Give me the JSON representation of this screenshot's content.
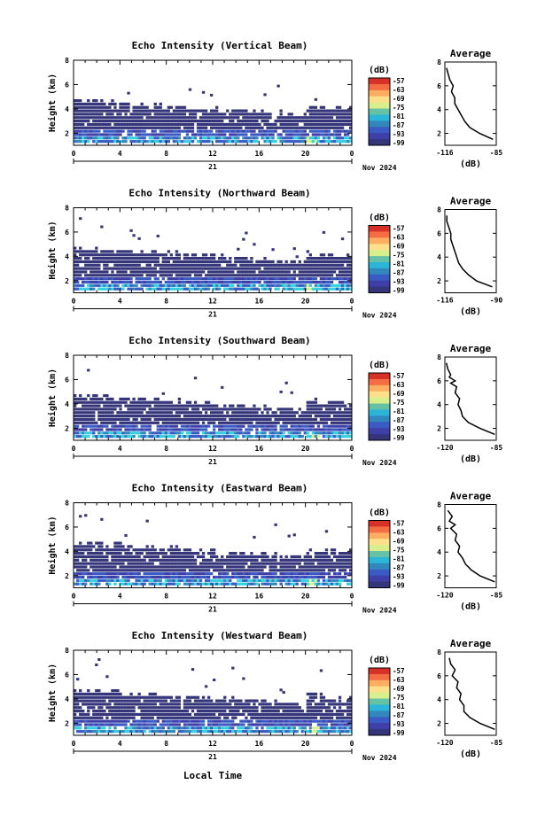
{
  "colorbar": {
    "unit": "(dB)",
    "labels": [
      "-57",
      "-63",
      "-69",
      "-75",
      "-81",
      "-87",
      "-93",
      "-99"
    ],
    "colors": [
      "#d73027",
      "#f46d43",
      "#fdae61",
      "#fee08b",
      "#d9ef8b",
      "#66c2a5",
      "#2bb5d8",
      "#3288bd",
      "#3b5bc4",
      "#3f3fa8",
      "#35357a"
    ]
  },
  "xaxis": {
    "ticks": [
      "0",
      "4",
      "8",
      "12",
      "16",
      "20",
      "0"
    ],
    "day": "21",
    "date": "Nov 2024",
    "label": "Local Time"
  },
  "chart_data": [
    {
      "type": "heatmap",
      "title": "Echo Intensity (Vertical Beam)",
      "ylabel": "Height (km)",
      "yticks": [
        "2",
        "4",
        "6",
        "8"
      ],
      "ylim": [
        1,
        8
      ],
      "xlim": [
        0,
        24
      ],
      "profile": {
        "title": "Average",
        "xlabel": "(dB)",
        "xticks": [
          "-116",
          "-85"
        ],
        "xlim": [
          -116,
          -85
        ],
        "height": [
          1.5,
          2.0,
          2.5,
          3.0,
          3.5,
          4.0,
          4.5,
          5.0,
          5.5,
          6.0,
          6.5,
          7.0,
          7.5
        ],
        "value": [
          -87,
          -95,
          -101,
          -104,
          -106,
          -108,
          -110,
          -110,
          -112,
          -111,
          -113,
          -114,
          -115
        ]
      }
    },
    {
      "type": "heatmap",
      "title": "Echo Intensity (Northward Beam)",
      "ylabel": "Height (km)",
      "yticks": [
        "2",
        "4",
        "6",
        "8"
      ],
      "ylim": [
        1,
        8
      ],
      "xlim": [
        0,
        24
      ],
      "profile": {
        "title": "Average",
        "xlabel": "(dB)",
        "xticks": [
          "-116",
          "-90"
        ],
        "xlim": [
          -116,
          -90
        ],
        "height": [
          1.5,
          2.0,
          2.5,
          3.0,
          3.5,
          4.0,
          4.5,
          5.0,
          5.5,
          6.0,
          6.5,
          7.0,
          7.5
        ],
        "value": [
          -92,
          -100,
          -104,
          -107,
          -109,
          -110,
          -111,
          -112,
          -113,
          -113,
          -114,
          -115,
          -115
        ]
      }
    },
    {
      "type": "heatmap",
      "title": "Echo Intensity (Southward Beam)",
      "ylabel": "Height (km)",
      "yticks": [
        "2",
        "4",
        "6",
        "8"
      ],
      "ylim": [
        1,
        8
      ],
      "xlim": [
        0,
        24
      ],
      "profile": {
        "title": "Average",
        "xlabel": "(dB)",
        "xticks": [
          "-120",
          "-85"
        ],
        "xlim": [
          -120,
          -85
        ],
        "height": [
          1.5,
          2.0,
          2.5,
          3.0,
          3.5,
          4.0,
          4.5,
          5.0,
          5.5,
          5.8,
          6.0,
          6.3,
          6.5,
          7.0,
          7.5
        ],
        "value": [
          -86,
          -96,
          -104,
          -108,
          -109,
          -111,
          -110,
          -113,
          -112,
          -116,
          -113,
          -117,
          -116,
          -118,
          -119
        ]
      }
    },
    {
      "type": "heatmap",
      "title": "Echo Intensity (Eastward Beam)",
      "ylabel": "Height (km)",
      "yticks": [
        "2",
        "4",
        "6",
        "8"
      ],
      "ylim": [
        1,
        8
      ],
      "xlim": [
        0,
        24
      ],
      "profile": {
        "title": "Average",
        "xlabel": "(dB)",
        "xticks": [
          "-120",
          "-85"
        ],
        "xlim": [
          -120,
          -85
        ],
        "height": [
          1.5,
          2.0,
          2.5,
          3.0,
          3.5,
          4.0,
          4.5,
          5.0,
          5.5,
          6.0,
          6.3,
          6.6,
          7.0,
          7.5
        ],
        "value": [
          -86,
          -96,
          -102,
          -106,
          -108,
          -111,
          -110,
          -113,
          -112,
          -116,
          -113,
          -117,
          -115,
          -118
        ]
      }
    },
    {
      "type": "heatmap",
      "title": "Echo Intensity (Westward Beam)",
      "ylabel": "Height (km)",
      "yticks": [
        "2",
        "4",
        "6",
        "8"
      ],
      "ylim": [
        1,
        8
      ],
      "xlim": [
        0,
        24
      ],
      "profile": {
        "title": "Average",
        "xlabel": "(dB)",
        "xticks": [
          "-120",
          "-85"
        ],
        "xlim": [
          -120,
          -85
        ],
        "height": [
          1.5,
          2.0,
          2.5,
          3.0,
          3.5,
          4.0,
          4.5,
          5.0,
          5.5,
          6.0,
          6.5,
          7.0,
          7.5
        ],
        "value": [
          -86,
          -96,
          -103,
          -107,
          -107,
          -110,
          -109,
          -112,
          -111,
          -115,
          -113,
          -116,
          -117
        ]
      }
    }
  ]
}
